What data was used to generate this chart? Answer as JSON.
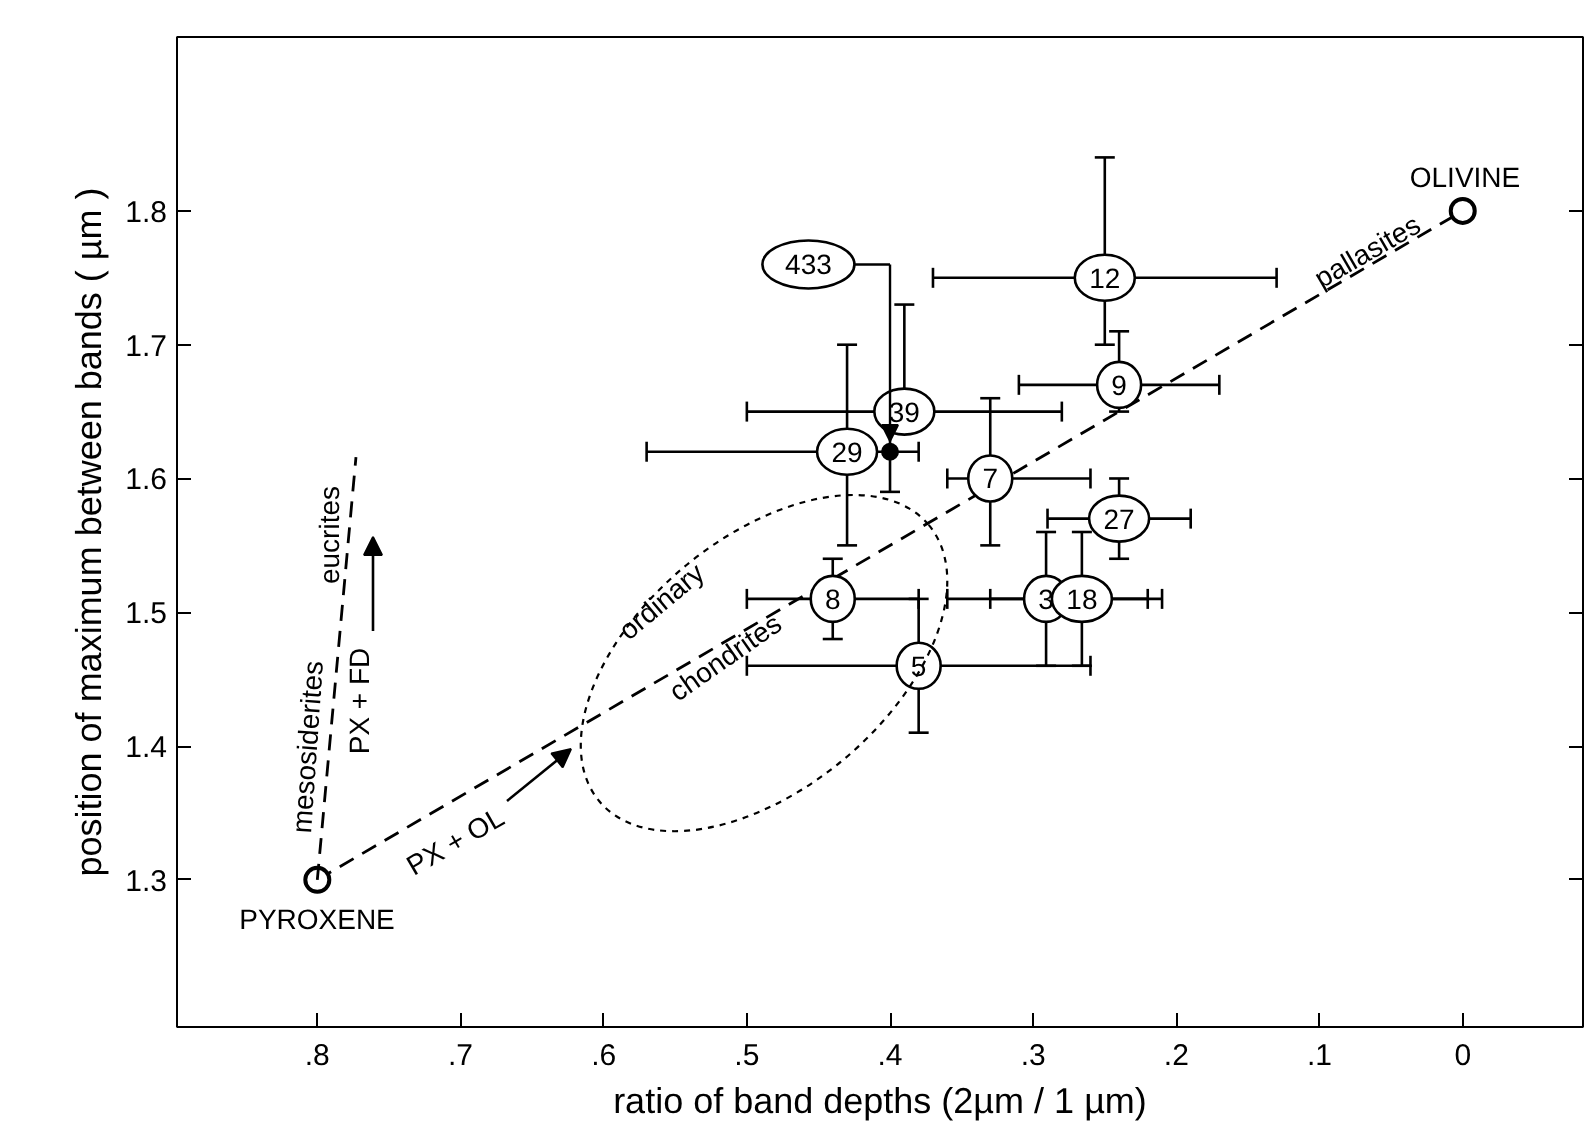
{
  "chart_data": {
    "type": "scatter",
    "xlabel": "ratio of band depths (2µm / 1 µm)",
    "ylabel": "position of maximum between bands ( µm )",
    "xlim": [
      0.898,
      -0.084
    ],
    "ylim": [
      1.19,
      1.93
    ],
    "xticks": [
      {
        "value": 0.8,
        "label": ".8"
      },
      {
        "value": 0.7,
        "label": ".7"
      },
      {
        "value": 0.6,
        "label": ".6"
      },
      {
        "value": 0.5,
        "label": ".5"
      },
      {
        "value": 0.4,
        "label": ".4"
      },
      {
        "value": 0.3,
        "label": ".3"
      },
      {
        "value": 0.2,
        "label": ".2"
      },
      {
        "value": 0.1,
        "label": ".1"
      },
      0
    ],
    "yticks": [
      1.3,
      1.4,
      1.5,
      1.6,
      1.7,
      1.8
    ],
    "series": [
      {
        "type": "line",
        "color": "#000000",
        "marker": "circle",
        "line_style": "dashed",
        "x": [
          0.8,
          0
        ],
        "values": [
          1.3,
          1.8
        ]
      },
      {
        "type": "line",
        "color": "#000000",
        "marker": "none",
        "line_style": "dashed",
        "x": [
          0.8,
          0.773
        ],
        "values": [
          1.3,
          1.616
        ]
      },
      {
        "color": "#000000",
        "marker": "circle",
        "x": [
          0.25,
          0.24,
          0.39,
          0.43,
          0.33,
          0.24,
          0.291,
          0.266,
          0.44,
          0.38
        ],
        "values": [
          1.75,
          1.67,
          1.65,
          1.62,
          1.6,
          1.57,
          1.51,
          1.51,
          1.51,
          1.46
        ],
        "xerrors": [
          [
            0.13,
            0.37
          ],
          [
            0.17,
            0.31
          ],
          [
            0.28,
            0.5
          ],
          [
            0.38,
            0.57
          ],
          [
            0.26,
            0.36
          ],
          [
            0.19,
            0.29
          ],
          [
            0.22,
            0.36
          ],
          [
            0.21,
            0.33
          ],
          [
            0.38,
            0.5
          ],
          [
            0.26,
            0.5
          ]
        ],
        "errors": [
          [
            1.7,
            1.84
          ],
          [
            1.65,
            1.71
          ],
          [
            1.65,
            1.73
          ],
          [
            1.55,
            1.7
          ],
          [
            1.55,
            1.66
          ],
          [
            1.54,
            1.6
          ],
          [
            1.46,
            1.56
          ],
          [
            1.46,
            1.56
          ],
          [
            1.48,
            1.54
          ],
          [
            1.41,
            1.51
          ]
        ]
      },
      {
        "color": "#000000",
        "marker": "circle",
        "x": [
          0.4
        ],
        "values": [
          1.62
        ],
        "errors": [
          [
            1.59,
            1.66
          ]
        ]
      }
    ],
    "annotations": [
      {
        "text": "12",
        "x": 0.25,
        "y": 1.75
      },
      {
        "text": "9",
        "x": 0.24,
        "y": 1.67
      },
      {
        "text": "39",
        "x": 0.39,
        "y": 1.65
      },
      {
        "text": "29",
        "x": 0.43,
        "y": 1.62
      },
      {
        "text": "7",
        "x": 0.33,
        "y": 1.6
      },
      {
        "text": "27",
        "x": 0.24,
        "y": 1.57
      },
      {
        "text": "3",
        "x": 0.291,
        "y": 1.51
      },
      {
        "text": "18",
        "x": 0.266,
        "y": 1.51
      },
      {
        "text": "8",
        "x": 0.44,
        "y": 1.51
      },
      {
        "text": "5",
        "x": 0.38,
        "y": 1.46
      },
      "433",
      "OLIVINE",
      "PYROXENE",
      "pallasites",
      "eucrites",
      "mesosiderites",
      "PX + FD",
      "PX + OL",
      "ordinary",
      "chondrites"
    ]
  }
}
